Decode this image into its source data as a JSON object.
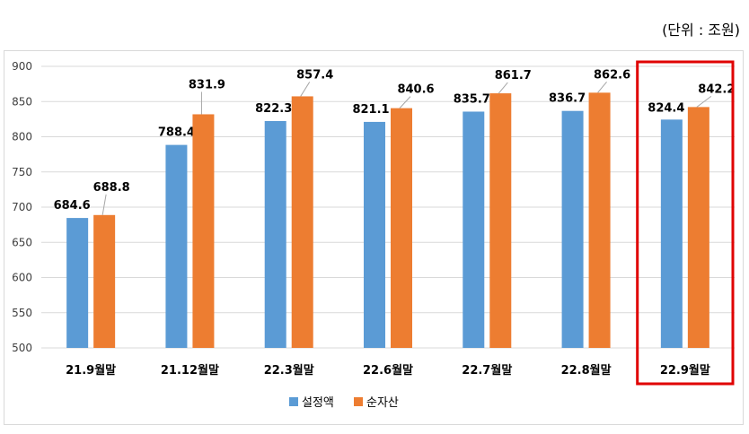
{
  "unit_label": "(단위 : 조원)",
  "chart_data": {
    "type": "bar",
    "categories": [
      "21.9월말",
      "21.12월말",
      "22.3월말",
      "22.6월말",
      "22.7월말",
      "22.8월말",
      "22.9월말"
    ],
    "series": [
      {
        "name": "설정액",
        "color": "#5b9bd5",
        "values": [
          684.6,
          788.4,
          822.3,
          821.1,
          835.7,
          836.7,
          824.4
        ]
      },
      {
        "name": "순자산",
        "color": "#ed7d31",
        "values": [
          688.8,
          831.9,
          857.4,
          840.6,
          861.7,
          862.6,
          842.2
        ]
      }
    ],
    "data_labels": [
      [
        "684.6",
        "788.4",
        "822.3",
        "821.1",
        "835.7",
        "836.7",
        "824.4"
      ],
      [
        "688.8",
        "831.9",
        "857.4",
        "840.6",
        "861.7",
        "862.6",
        "842.2"
      ]
    ],
    "ylim": [
      500,
      900
    ],
    "yticks": [
      "500",
      "550",
      "600",
      "650",
      "700",
      "750",
      "800",
      "850",
      "900"
    ],
    "grid": true,
    "legend_position": "bottom",
    "highlight_category": "22.9월말",
    "highlight_color": "#e00000"
  }
}
